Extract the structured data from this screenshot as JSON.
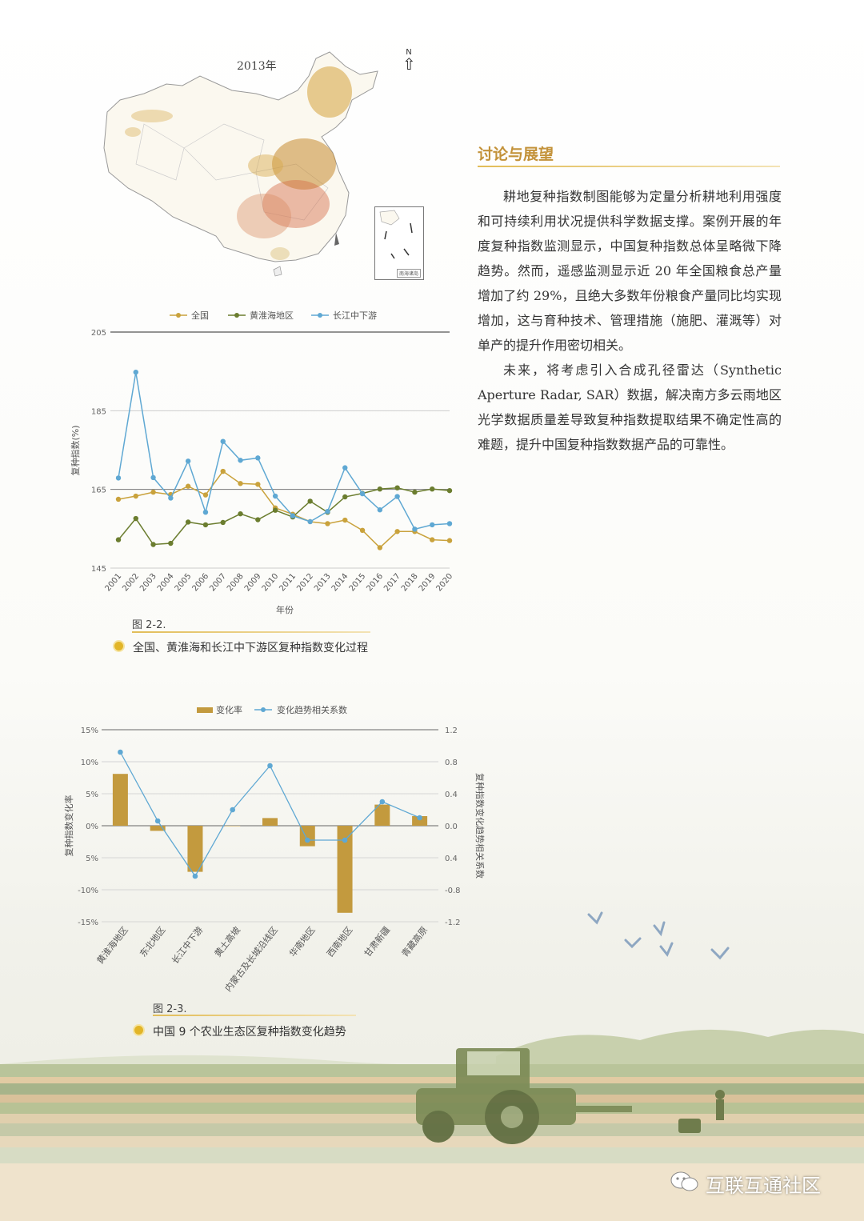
{
  "map": {
    "year_label": "2013年",
    "north_label": "N",
    "inset_label": "南海诸岛"
  },
  "discussion": {
    "heading": "讨论与展望",
    "paragraphs": [
      "耕地复种指数制图能够为定量分析耕地利用强度和可持续利用状况提供科学数据支撑。案例开展的年度复种指数监测显示，中国复种指数总体呈略微下降趋势。然而，遥感监测显示近 20 年全国粮食总产量增加了约 29%，且绝大多数年份粮食产量同比均实现增加，这与育种技术、管理措施（施肥、灌溉等）对单产的提升作用密切相关。",
      "未来，将考虑引入合成孔径雷达（Synthetic Aperture Radar, SAR）数据，解决南方多云雨地区光学数据质量差导致复种指数提取结果不确定性高的难题，提升中国复种指数数据产品的可靠性。"
    ]
  },
  "figure_2_2": {
    "number": "图 2-2.",
    "caption": "全国、黄淮海和长江中下游区复种指数变化过程"
  },
  "figure_2_3": {
    "number": "图 2-3.",
    "caption": "中国 9 个农业生态区复种指数变化趋势"
  },
  "watermark": {
    "text": "互联互通社区"
  },
  "chart_data": [
    {
      "type": "line",
      "xlabel": "年份",
      "ylabel": "复种指数(%)",
      "ylim": [
        145,
        205
      ],
      "yticks": [
        145,
        165,
        185,
        205
      ],
      "x": [
        "2001",
        "2002",
        "2003",
        "2004",
        "2005",
        "2006",
        "2007",
        "2008",
        "2009",
        "2010",
        "2011",
        "2012",
        "2013",
        "2014",
        "2015",
        "2016",
        "2017",
        "2018",
        "2019",
        "2020"
      ],
      "legend_position": "top",
      "grid": true,
      "series": [
        {
          "name": "全国",
          "color": "#c9a23c",
          "values": [
            162.5,
            163.3,
            164.3,
            163.7,
            165.8,
            163.6,
            169.6,
            166.5,
            166.3,
            160.3,
            158.7,
            156.8,
            156.3,
            157.2,
            154.6,
            150.2,
            154.3,
            154.3,
            152.2,
            152.0
          ]
        },
        {
          "name": "黄淮海地区",
          "color": "#6b7d2f",
          "values": [
            152.2,
            157.6,
            151.0,
            151.3,
            156.7,
            156.0,
            156.6,
            158.8,
            157.3,
            159.7,
            158.0,
            162.0,
            159.2,
            163.1,
            164.0,
            165.1,
            165.4,
            164.3,
            165.1,
            164.7
          ]
        },
        {
          "name": "长江中下游",
          "color": "#5fa8d3",
          "values": [
            167.9,
            194.8,
            168.0,
            162.8,
            172.2,
            159.2,
            177.2,
            172.4,
            173.0,
            163.3,
            158.3,
            156.8,
            159.4,
            170.5,
            163.9,
            159.8,
            163.2,
            154.9,
            156.0,
            156.3
          ]
        }
      ]
    },
    {
      "type": "bar",
      "categories": [
        "黄淮海地区",
        "东北地区",
        "长江中下游",
        "黄土高坡",
        "内蒙古及长城沿线区",
        "华南地区",
        "西南地区",
        "甘肃新疆",
        "青藏高原"
      ],
      "ylabel": "复种指数变化率",
      "y2label": "复种指数变化趋势相关系数",
      "ylim": [
        -15,
        15
      ],
      "yticks": [
        "-15%",
        "-10%",
        "5%",
        "0%",
        "5%",
        "10%",
        "15%"
      ],
      "y2lim": [
        -1.2,
        1.2
      ],
      "y2ticks": [
        "-1.2",
        "-0.8",
        "0.4",
        "0.0",
        "0.4",
        "0.8",
        "1.2"
      ],
      "legend_position": "top",
      "grid": true,
      "series": [
        {
          "name": "变化率",
          "type": "bar",
          "color": "#c39a3e",
          "values": [
            8.1,
            -0.8,
            -7.2,
            0,
            1.2,
            -3.2,
            -13.6,
            3.3,
            1.5
          ]
        },
        {
          "name": "变化趋势相关系数",
          "type": "line",
          "color": "#5fa8d3",
          "values": [
            0.92,
            0.06,
            -0.63,
            0.2,
            0.75,
            -0.18,
            -0.18,
            0.3,
            0.1
          ]
        }
      ]
    }
  ]
}
